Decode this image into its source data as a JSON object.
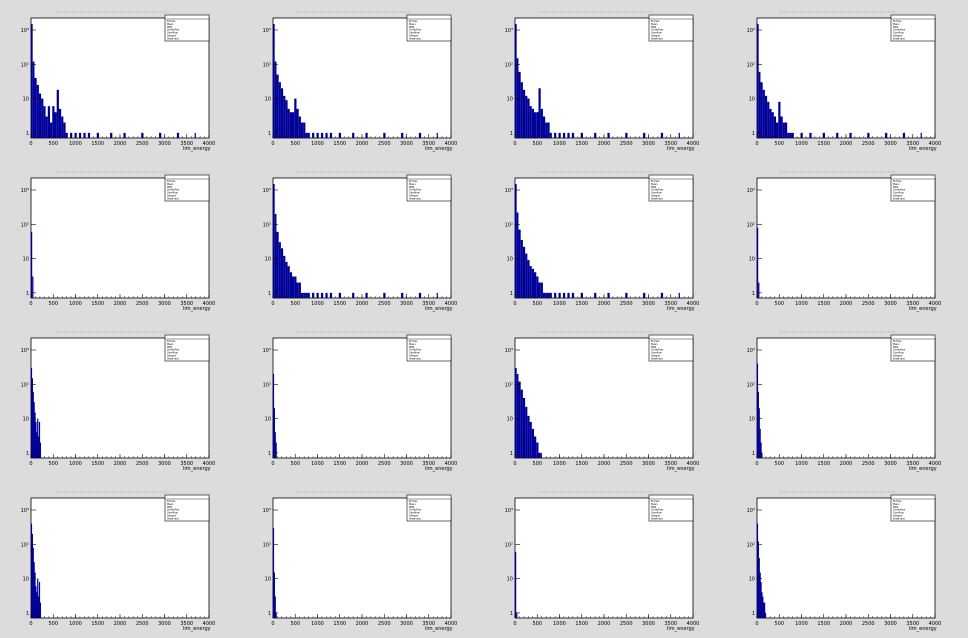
{
  "colors": {
    "background": "#dcdcdc",
    "frame_fill": "#ffffff",
    "axis": "#000000",
    "histogram": "#000099"
  },
  "stats_labels": [
    "Entries",
    "Mean",
    "RMS",
    "Underflow",
    "Overflow",
    "Integral",
    "Skewness"
  ],
  "chart_data": [
    {
      "type": "histogram",
      "xlabel": "lim_energy",
      "xlim": [
        0,
        4000
      ],
      "y_scale": "log",
      "y_ticks": [
        1,
        10,
        100,
        1000
      ],
      "y_tick_labels": [
        "1",
        "10",
        "10²",
        "10³"
      ],
      "x_ticks": [
        0,
        500,
        1000,
        1500,
        2000,
        2500,
        3000,
        3500,
        4000
      ],
      "x": [
        20,
        60,
        100,
        150,
        200,
        250,
        300,
        350,
        400,
        450,
        500,
        550,
        600,
        650,
        700,
        750,
        800,
        900,
        1000,
        1100,
        1200,
        1300,
        1500,
        1800,
        2100,
        2500,
        2900,
        3300,
        3700
      ],
      "values": [
        1500,
        120,
        40,
        25,
        14,
        10,
        6,
        3,
        6,
        2,
        6,
        4,
        18,
        5,
        3,
        2,
        1,
        1,
        1,
        1,
        1,
        1,
        1,
        1,
        1,
        1,
        1,
        1,
        1
      ]
    },
    {
      "type": "histogram",
      "xlabel": "lim_energy",
      "xlim": [
        0,
        4000
      ],
      "y_scale": "log",
      "y_ticks": [
        1,
        10,
        100,
        1000
      ],
      "y_tick_labels": [
        "1",
        "10",
        "10²",
        "10³"
      ],
      "x_ticks": [
        0,
        500,
        1000,
        1500,
        2000,
        2500,
        3000,
        3500,
        4000
      ],
      "x": [
        20,
        60,
        100,
        150,
        200,
        250,
        300,
        350,
        400,
        450,
        500,
        550,
        600,
        650,
        700,
        750,
        800,
        900,
        1000,
        1100,
        1200,
        1300,
        1500,
        1800,
        2100,
        2500,
        2900,
        3300,
        3700
      ],
      "values": [
        1500,
        120,
        50,
        30,
        20,
        12,
        9,
        5,
        4,
        4,
        10,
        5,
        3,
        2,
        2,
        1,
        1,
        1,
        1,
        1,
        1,
        1,
        1,
        1,
        1,
        1,
        1,
        1,
        1
      ]
    },
    {
      "type": "histogram",
      "xlabel": "lim_energy",
      "xlim": [
        0,
        4000
      ],
      "y_scale": "log",
      "y_ticks": [
        1,
        10,
        100,
        1000
      ],
      "y_tick_labels": [
        "1",
        "10",
        "10²",
        "10³"
      ],
      "x_ticks": [
        0,
        500,
        1000,
        1500,
        2000,
        2500,
        3000,
        3500,
        4000
      ],
      "x": [
        20,
        60,
        100,
        150,
        200,
        250,
        300,
        350,
        400,
        450,
        500,
        550,
        600,
        650,
        700,
        750,
        800,
        900,
        1000,
        1100,
        1200,
        1300,
        1500,
        1800,
        2100,
        2500,
        2900,
        3300,
        3700
      ],
      "values": [
        1500,
        150,
        60,
        30,
        18,
        12,
        10,
        6,
        5,
        4,
        4,
        20,
        5,
        3,
        2,
        2,
        1,
        1,
        1,
        1,
        1,
        1,
        1,
        1,
        1,
        1,
        1,
        1,
        1
      ]
    },
    {
      "type": "histogram",
      "xlabel": "lim_energy",
      "xlim": [
        0,
        4000
      ],
      "y_scale": "log",
      "y_ticks": [
        1,
        10,
        100,
        1000
      ],
      "y_tick_labels": [
        "1",
        "10",
        "10²",
        "10³"
      ],
      "x_ticks": [
        0,
        500,
        1000,
        1500,
        2000,
        2500,
        3000,
        3500,
        4000
      ],
      "x": [
        20,
        60,
        100,
        150,
        200,
        250,
        300,
        350,
        400,
        450,
        500,
        550,
        600,
        650,
        700,
        750,
        800,
        1000,
        1200,
        1500,
        1800,
        2100,
        2500,
        2900,
        3300,
        3700
      ],
      "values": [
        1500,
        60,
        30,
        18,
        12,
        8,
        5,
        4,
        3,
        2,
        8,
        3,
        2,
        2,
        1,
        1,
        1,
        1,
        1,
        1,
        1,
        1,
        1,
        1,
        1,
        1
      ]
    },
    {
      "type": "histogram",
      "xlabel": "lim_energy",
      "xlim": [
        0,
        4000
      ],
      "y_scale": "log",
      "y_ticks": [
        1,
        10,
        100,
        1000
      ],
      "y_tick_labels": [
        "1",
        "10",
        "10²",
        "10³"
      ],
      "x_ticks": [
        0,
        500,
        1000,
        1500,
        2000,
        2500,
        3000,
        3500,
        4000
      ],
      "x": [
        20,
        50
      ],
      "values": [
        60,
        3
      ]
    },
    {
      "type": "histogram",
      "xlabel": "lim_energy",
      "xlim": [
        0,
        4000
      ],
      "y_scale": "log",
      "y_ticks": [
        1,
        10,
        100,
        1000
      ],
      "y_tick_labels": [
        "1",
        "10",
        "10²",
        "10³"
      ],
      "x_ticks": [
        0,
        500,
        1000,
        1500,
        2000,
        2500,
        3000,
        3500,
        4000
      ],
      "x": [
        20,
        60,
        100,
        150,
        200,
        250,
        300,
        350,
        400,
        450,
        500,
        550,
        600,
        650,
        700,
        750,
        800,
        900,
        1000,
        1100,
        1200,
        1300,
        1500,
        1800,
        2100,
        2500,
        2900,
        3300,
        3700
      ],
      "values": [
        1500,
        200,
        60,
        30,
        20,
        12,
        8,
        6,
        4,
        3,
        3,
        2,
        2,
        1,
        1,
        1,
        1,
        1,
        1,
        1,
        1,
        1,
        1,
        1,
        1,
        1,
        1,
        1,
        1
      ]
    },
    {
      "type": "histogram",
      "xlabel": "lim_energy",
      "xlim": [
        0,
        4000
      ],
      "y_scale": "log",
      "y_ticks": [
        1,
        10,
        100,
        1000
      ],
      "y_tick_labels": [
        "1",
        "10",
        "10²",
        "10³"
      ],
      "x_ticks": [
        0,
        500,
        1000,
        1500,
        2000,
        2500,
        3000,
        3500,
        4000
      ],
      "x": [
        20,
        60,
        100,
        150,
        200,
        250,
        300,
        350,
        400,
        450,
        500,
        550,
        600,
        650,
        700,
        750,
        800,
        900,
        1000,
        1100,
        1200,
        1300,
        1500,
        1800,
        2100,
        2500,
        2900,
        3300,
        3700
      ],
      "values": [
        1500,
        220,
        70,
        35,
        22,
        14,
        9,
        6,
        5,
        4,
        3,
        2,
        2,
        1,
        1,
        1,
        1,
        1,
        1,
        1,
        1,
        1,
        1,
        1,
        1,
        1,
        1,
        1,
        1
      ]
    },
    {
      "type": "histogram",
      "xlabel": "lim_energy",
      "xlim": [
        0,
        4000
      ],
      "y_scale": "log",
      "y_ticks": [
        1,
        10,
        100,
        1000
      ],
      "y_tick_labels": [
        "1",
        "10",
        "10²",
        "10³"
      ],
      "x_ticks": [
        0,
        500,
        1000,
        1500,
        2000,
        2500,
        3000,
        3500,
        4000
      ],
      "x": [
        20,
        50
      ],
      "values": [
        80,
        2
      ]
    },
    {
      "type": "histogram",
      "xlabel": "lim_energy",
      "xlim": [
        0,
        4000
      ],
      "y_scale": "log",
      "y_ticks": [
        1,
        10,
        100,
        1000
      ],
      "y_tick_labels": [
        "1",
        "10",
        "10²",
        "10³"
      ],
      "x_ticks": [
        0,
        500,
        1000,
        1500,
        2000,
        2500,
        3000,
        3500,
        4000
      ],
      "x": [
        20,
        40,
        60,
        80,
        100,
        120,
        140,
        160,
        180,
        200,
        220
      ],
      "values": [
        300,
        150,
        60,
        30,
        15,
        8,
        4,
        10,
        3,
        8,
        2
      ]
    },
    {
      "type": "histogram",
      "xlabel": "lim_energy",
      "xlim": [
        0,
        4000
      ],
      "y_scale": "log",
      "y_ticks": [
        1,
        10,
        100,
        1000
      ],
      "y_tick_labels": [
        "1",
        "10",
        "10²",
        "10³"
      ],
      "x_ticks": [
        0,
        500,
        1000,
        1500,
        2000,
        2500,
        3000,
        3500,
        4000
      ],
      "x": [
        20,
        40,
        60,
        80
      ],
      "values": [
        200,
        20,
        4,
        2
      ]
    },
    {
      "type": "histogram",
      "xlabel": "lim_energy",
      "xlim": [
        0,
        4000
      ],
      "y_scale": "log",
      "y_ticks": [
        1,
        10,
        100,
        1000
      ],
      "y_tick_labels": [
        "1",
        "10",
        "10²",
        "10³"
      ],
      "x_ticks": [
        0,
        500,
        1000,
        1500,
        2000,
        2500,
        3000,
        3500,
        4000
      ],
      "x": [
        20,
        60,
        100,
        150,
        200,
        250,
        300,
        350,
        400,
        450,
        500,
        550,
        600
      ],
      "values": [
        300,
        200,
        120,
        70,
        40,
        22,
        12,
        8,
        5,
        3,
        2,
        1,
        1
      ]
    },
    {
      "type": "histogram",
      "xlabel": "lim_energy",
      "xlim": [
        0,
        4000
      ],
      "y_scale": "log",
      "y_ticks": [
        1,
        10,
        100,
        1000
      ],
      "y_tick_labels": [
        "1",
        "10",
        "10²",
        "10³"
      ],
      "x_ticks": [
        0,
        500,
        1000,
        1500,
        2000,
        2500,
        3000,
        3500,
        4000
      ],
      "x": [
        20,
        40,
        60,
        80,
        100,
        120
      ],
      "values": [
        400,
        60,
        20,
        5,
        2,
        1
      ]
    },
    {
      "type": "histogram",
      "xlabel": "lim_energy",
      "xlim": [
        0,
        4000
      ],
      "y_scale": "log",
      "y_ticks": [
        1,
        10,
        100,
        1000
      ],
      "y_tick_labels": [
        "1",
        "10",
        "10²",
        "10³"
      ],
      "x_ticks": [
        0,
        500,
        1000,
        1500,
        2000,
        2500,
        3000,
        3500,
        4000
      ],
      "x": [
        20,
        40,
        60,
        80,
        100,
        120,
        140,
        160,
        180,
        200,
        220
      ],
      "values": [
        400,
        200,
        80,
        30,
        15,
        6,
        4,
        10,
        3,
        8,
        2
      ]
    },
    {
      "type": "histogram",
      "xlabel": "lim_energy",
      "xlim": [
        0,
        4000
      ],
      "y_scale": "log",
      "y_ticks": [
        1,
        10,
        100,
        1000
      ],
      "y_tick_labels": [
        "1",
        "10",
        "10²",
        "10³"
      ],
      "x_ticks": [
        0,
        500,
        1000,
        1500,
        2000,
        2500,
        3000,
        3500,
        4000
      ],
      "x": [
        20,
        40,
        60,
        80
      ],
      "values": [
        300,
        15,
        3,
        1
      ]
    },
    {
      "type": "histogram",
      "xlabel": "lim_energy",
      "xlim": [
        0,
        4000
      ],
      "y_scale": "log",
      "y_ticks": [
        1,
        10,
        100,
        1000
      ],
      "y_tick_labels": [
        "1",
        "10",
        "10²",
        "10³"
      ],
      "x_ticks": [
        0,
        500,
        1000,
        1500,
        2000,
        2500,
        3000,
        3500,
        4000
      ],
      "x": [
        20,
        50
      ],
      "values": [
        60,
        1
      ]
    },
    {
      "type": "histogram",
      "xlabel": "lim_energy",
      "xlim": [
        0,
        4000
      ],
      "y_scale": "log",
      "y_ticks": [
        1,
        10,
        100,
        1000
      ],
      "y_tick_labels": [
        "1",
        "10",
        "10²",
        "10³"
      ],
      "x_ticks": [
        0,
        500,
        1000,
        1500,
        2000,
        2500,
        3000,
        3500,
        4000
      ],
      "x": [
        20,
        40,
        60,
        80,
        100,
        120,
        140,
        160,
        180,
        200
      ],
      "values": [
        400,
        120,
        40,
        15,
        8,
        4,
        3,
        2,
        2,
        1
      ]
    }
  ]
}
